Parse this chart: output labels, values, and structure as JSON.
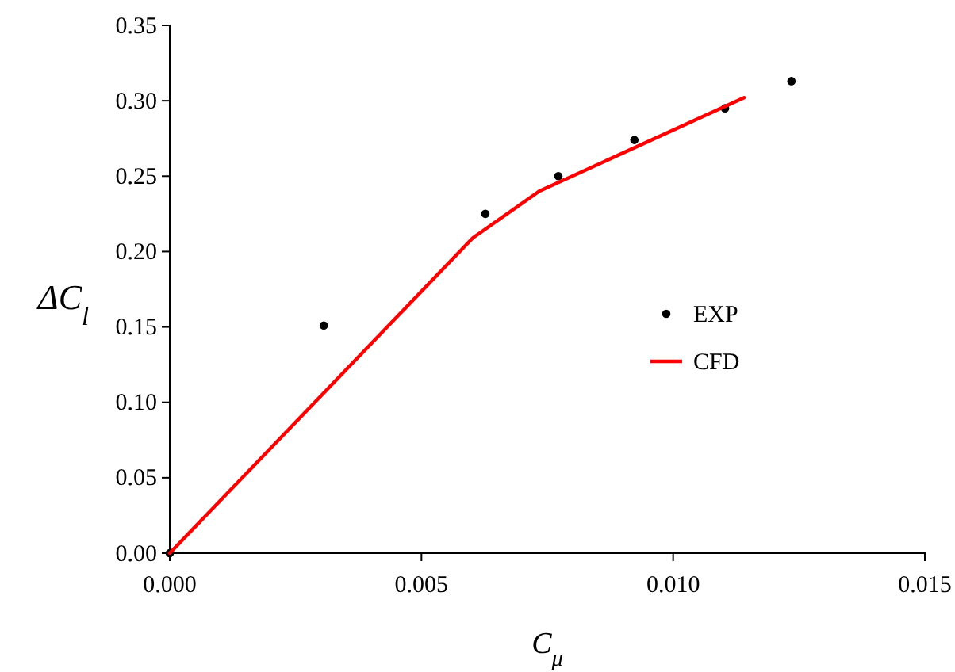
{
  "chart_data": {
    "type": "scatter",
    "xlabel": "C$_{μ}$",
    "ylabel": "ΔC$_{l}$",
    "xlim": [
      0,
      0.015
    ],
    "xticks": [
      {
        "value": 0,
        "label": "0.000"
      },
      {
        "value": 0.005,
        "label": "0.005"
      },
      {
        "value": 0.01,
        "label": "0.010"
      },
      {
        "value": 0.015,
        "label": "0.015"
      }
    ],
    "ylim": [
      0,
      0.35
    ],
    "yticks": [
      {
        "value": 0,
        "label": "0.00"
      },
      {
        "value": 0.05,
        "label": "0.05"
      },
      {
        "value": 0.1,
        "label": "0.10"
      },
      {
        "value": 0.15,
        "label": "0.15"
      },
      {
        "value": 0.2,
        "label": "0.20"
      },
      {
        "value": 0.25,
        "label": "0.25"
      },
      {
        "value": 0.3,
        "label": "0.30"
      },
      {
        "value": 0.35,
        "label": "0.35"
      }
    ],
    "grid": false,
    "legend": "right",
    "series": [
      {
        "name": "EXP",
        "marker": "circle",
        "color": "#000000",
        "x": [
          0,
          0.00306,
          0.00627,
          0.00772,
          0.00923,
          0.01103,
          0.01235
        ],
        "values": [
          0,
          0.151,
          0.225,
          0.25,
          0.274,
          0.295,
          0.313
        ]
      },
      {
        "name": "CFD",
        "type": "line",
        "color": "#ff0000",
        "line_style": "solid",
        "x": [
          0,
          0.00602,
          0.00734,
          0.01141
        ],
        "values": [
          0,
          0.209,
          0.24,
          0.302
        ]
      }
    ]
  }
}
